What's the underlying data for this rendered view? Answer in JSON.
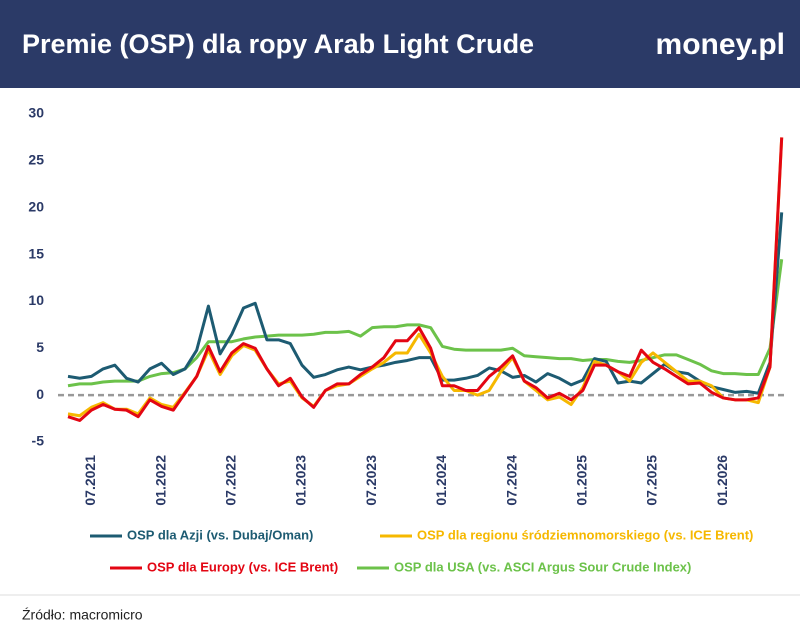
{
  "header": {
    "title": "Premie (OSP) dla ropy Arab Light Crude",
    "logo": "money.pl"
  },
  "chart_data": {
    "type": "line",
    "categories": [
      null,
      null,
      "07.2021",
      null,
      null,
      null,
      null,
      null,
      "01.2022",
      null,
      null,
      null,
      null,
      null,
      "07.2022",
      null,
      null,
      null,
      null,
      null,
      "01.2023",
      null,
      null,
      null,
      null,
      null,
      "07.2023",
      null,
      null,
      null,
      null,
      null,
      "01.2024",
      null,
      null,
      null,
      null,
      null,
      "07.2024",
      null,
      null,
      null,
      null,
      null,
      "01.2025",
      null,
      null,
      null,
      null,
      null,
      "07.2025",
      null,
      null,
      null,
      null,
      null,
      "01.2026",
      null,
      null,
      null,
      null,
      null
    ],
    "series": [
      {
        "name": "OSP dla Azji (vs. Dubaj/Oman)",
        "color": "#1d5b72",
        "values": [
          2.0,
          1.8,
          2.0,
          2.8,
          3.2,
          1.8,
          1.4,
          2.8,
          3.4,
          2.2,
          2.8,
          4.8,
          9.5,
          4.4,
          6.5,
          9.3,
          9.8,
          5.9,
          5.9,
          5.5,
          3.2,
          1.9,
          2.2,
          2.7,
          3.0,
          2.7,
          3.0,
          3.2,
          3.5,
          3.7,
          4.0,
          4.0,
          1.6,
          1.6,
          1.8,
          2.1,
          2.9,
          2.6,
          1.9,
          2.1,
          1.4,
          2.3,
          1.8,
          1.1,
          1.6,
          3.9,
          3.6,
          1.3,
          1.5,
          1.3,
          2.3,
          3.3,
          2.5,
          2.3,
          1.5,
          0.9,
          0.6,
          0.3,
          0.4,
          0.2,
          3.5,
          19.5
        ]
      },
      {
        "name": "OSP dla regionu śródziemnomorskiego (vs. ICE Brent)",
        "color": "#f6b800",
        "values": [
          -2.0,
          -2.2,
          -1.3,
          -0.8,
          -1.5,
          -1.5,
          -2.0,
          -0.3,
          -1.0,
          -1.3,
          0.3,
          2.0,
          4.8,
          2.2,
          4.2,
          5.3,
          4.8,
          2.8,
          1.2,
          1.5,
          -0.3,
          -1.2,
          0.5,
          1.0,
          1.2,
          2.0,
          2.8,
          3.5,
          4.5,
          4.5,
          6.5,
          4.5,
          2.0,
          0.5,
          0.5,
          0.0,
          0.5,
          2.5,
          4.0,
          1.5,
          0.5,
          -0.5,
          -0.2,
          -1.0,
          0.8,
          3.6,
          3.2,
          2.5,
          1.5,
          3.5,
          4.5,
          3.5,
          2.5,
          1.5,
          1.5,
          1.0,
          -0.3,
          -0.5,
          -0.5,
          -0.8,
          3.0,
          27.5
        ]
      },
      {
        "name": "OSP dla Europy (vs. ICE Brent)",
        "color": "#e30613",
        "values": [
          -2.3,
          -2.7,
          -1.6,
          -1.0,
          -1.5,
          -1.6,
          -2.3,
          -0.5,
          -1.2,
          -1.6,
          0.2,
          2.0,
          5.2,
          2.5,
          4.5,
          5.5,
          5.0,
          2.8,
          1.0,
          1.8,
          -0.2,
          -1.3,
          0.5,
          1.2,
          1.2,
          2.2,
          3.0,
          4.0,
          5.8,
          5.8,
          7.2,
          5.0,
          1.0,
          1.0,
          0.5,
          0.5,
          2.0,
          3.0,
          4.2,
          1.5,
          0.8,
          -0.3,
          0.2,
          -0.5,
          0.5,
          3.2,
          3.2,
          2.5,
          2.0,
          4.8,
          3.5,
          2.8,
          2.0,
          1.2,
          1.3,
          0.3,
          -0.3,
          -0.5,
          -0.5,
          -0.3,
          3.0,
          27.5
        ]
      },
      {
        "name": "OSP dla USA (vs. ASCI Argus Sour Crude Index)",
        "color": "#6cc24a",
        "values": [
          1.0,
          1.2,
          1.2,
          1.4,
          1.5,
          1.5,
          1.5,
          2.0,
          2.3,
          2.4,
          2.8,
          4.0,
          5.7,
          5.7,
          5.7,
          6.0,
          6.2,
          6.3,
          6.4,
          6.4,
          6.4,
          6.5,
          6.7,
          6.7,
          6.8,
          6.3,
          7.2,
          7.3,
          7.3,
          7.5,
          7.5,
          7.2,
          5.2,
          4.9,
          4.8,
          4.8,
          4.8,
          4.8,
          5.0,
          4.2,
          4.1,
          4.0,
          3.9,
          3.9,
          3.7,
          3.8,
          3.8,
          3.6,
          3.5,
          3.7,
          4.0,
          4.3,
          4.3,
          3.8,
          3.3,
          2.6,
          2.3,
          2.3,
          2.2,
          2.2,
          5.0,
          14.5
        ]
      }
    ],
    "ylim": [
      -5,
      30
    ],
    "yticks": [
      -5,
      0,
      5,
      10,
      15,
      20,
      25,
      30
    ],
    "grid": false,
    "source": "Źródło: macromicro"
  }
}
